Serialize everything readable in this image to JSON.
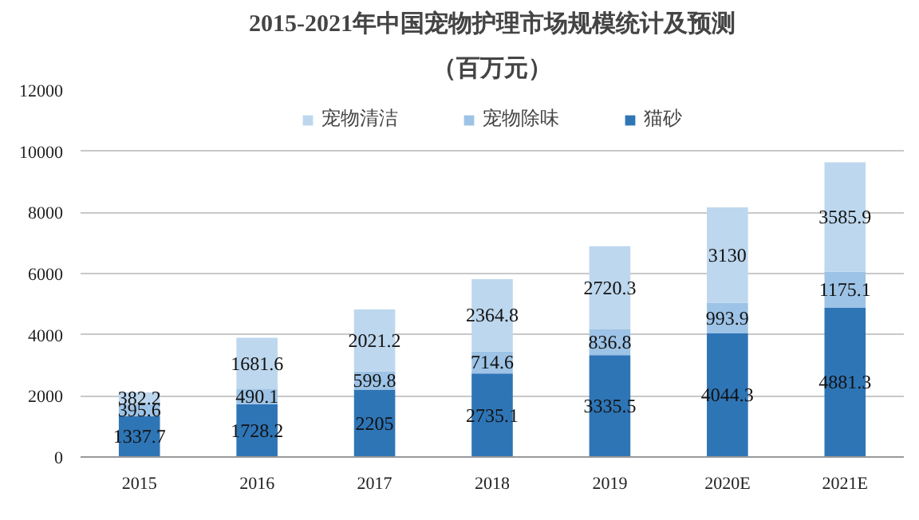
{
  "chart_data": {
    "type": "bar",
    "stacked": true,
    "title": "2015-2021年中国宠物护理市场规模统计及预测",
    "subtitle": "（百万元）",
    "categories": [
      "2015",
      "2016",
      "2017",
      "2018",
      "2019",
      "2020E",
      "2021E"
    ],
    "series": [
      {
        "name": "猫砂",
        "color": "#2e75b6",
        "values": [
          1337.7,
          1728.2,
          2205,
          2735.1,
          3335.5,
          4044.3,
          4881.3
        ]
      },
      {
        "name": "宠物除味",
        "color": "#9dc3e6",
        "values": [
          395.6,
          490.1,
          599.8,
          714.6,
          836.8,
          993.9,
          1175.1
        ]
      },
      {
        "name": "宠物清洁",
        "color": "#bdd7ee",
        "values": [
          382.2,
          1681.6,
          2021.2,
          2364.8,
          2720.3,
          3130,
          3585.9
        ]
      }
    ],
    "ylim": [
      0,
      12000
    ],
    "yticks": [
      0,
      2000,
      4000,
      6000,
      8000,
      10000,
      12000
    ],
    "grid": "y",
    "legend": "top",
    "data_labels": true
  }
}
